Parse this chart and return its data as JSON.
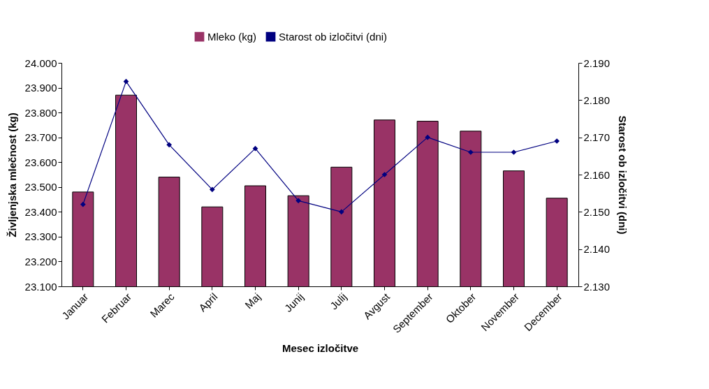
{
  "chart_data": {
    "type": "bar",
    "xlabel": "Mesec izločitve",
    "ylabel": "Življenjska mlečnost (kg)",
    "y2label": "Starost ob izločitvi (dni)",
    "legend": "top",
    "marker": "diamond",
    "categories": [
      "Januar",
      "Februar",
      "Marec",
      "April",
      "Maj",
      "Junij",
      "Julij",
      "Avgust",
      "September",
      "Oktober",
      "November",
      "December"
    ],
    "ylim": [
      23100,
      24000
    ],
    "yticks": [
      {
        "value": 23100,
        "label": "23.100"
      },
      {
        "value": 23200,
        "label": "23.200"
      },
      {
        "value": 23300,
        "label": "23.300"
      },
      {
        "value": 23400,
        "label": "23.400"
      },
      {
        "value": 23500,
        "label": "23.500"
      },
      {
        "value": 23600,
        "label": "23.600"
      },
      {
        "value": 23700,
        "label": "23.700"
      },
      {
        "value": 23800,
        "label": "23.800"
      },
      {
        "value": 23900,
        "label": "23.900"
      },
      {
        "value": 24000,
        "label": "24.000"
      }
    ],
    "y2lim": [
      2130,
      2190
    ],
    "y2ticks": [
      {
        "value": 2130,
        "label": "2.130"
      },
      {
        "value": 2140,
        "label": "2.140"
      },
      {
        "value": 2150,
        "label": "2.150"
      },
      {
        "value": 2160,
        "label": "2.160"
      },
      {
        "value": 2170,
        "label": "2.170"
      },
      {
        "value": 2180,
        "label": "2.180"
      },
      {
        "value": 2190,
        "label": "2.190"
      }
    ],
    "series": [
      {
        "name": "Mleko (kg)",
        "color": "#993366",
        "values": [
          23480,
          23870,
          23540,
          23420,
          23505,
          23465,
          23580,
          23770,
          23765,
          23725,
          23565,
          23455
        ]
      },
      {
        "name": "Starost ob izločitvi (dni)",
        "type": "line",
        "axis": "y2",
        "color": "#000080",
        "values": [
          2152,
          2185,
          2168,
          2156,
          2167,
          2153,
          2150,
          2160,
          2170,
          2166,
          2166,
          2169
        ]
      }
    ]
  }
}
